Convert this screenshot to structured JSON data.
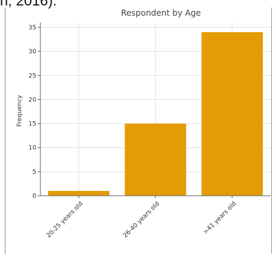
{
  "page": {
    "caption_fragment": "n, 2016)."
  },
  "chart_data": {
    "type": "bar",
    "title": "Respondent by Age",
    "xlabel": "",
    "ylabel": "Frequency",
    "categories": [
      "20-25 years old",
      "26-40 years old",
      ">41 years old"
    ],
    "values": [
      1,
      15,
      34
    ],
    "ylim": [
      0,
      36
    ],
    "yticks": [
      0,
      5,
      10,
      15,
      20,
      25,
      30,
      35
    ],
    "grid": true,
    "legend": "none",
    "bar_color": "#e39c06"
  }
}
